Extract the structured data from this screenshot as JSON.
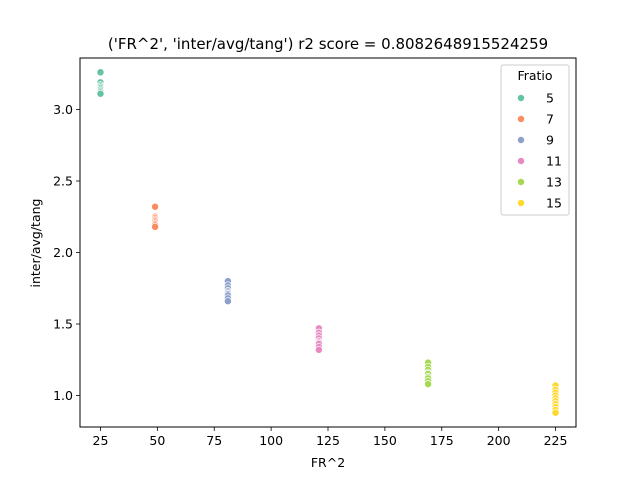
{
  "chart_data": {
    "type": "scatter",
    "title": "('FR^2', 'inter/avg/tang') r2 score = 0.8082648915524259",
    "xlabel": "FR^2",
    "ylabel": "inter/avg/tang",
    "xlim": [
      16,
      234
    ],
    "ylim": [
      0.78,
      3.36
    ],
    "xticks": [
      25,
      50,
      75,
      100,
      125,
      150,
      175,
      200,
      225
    ],
    "yticks": [
      1.0,
      1.5,
      2.0,
      2.5,
      3.0
    ],
    "xtick_labels": [
      "25",
      "50",
      "75",
      "100",
      "125",
      "150",
      "175",
      "200",
      "225"
    ],
    "ytick_labels": [
      "1.0",
      "1.5",
      "2.0",
      "2.5",
      "3.0"
    ],
    "grid": false,
    "legend": {
      "title": "Fratio",
      "placement": "upper right"
    },
    "series": [
      {
        "name": "5",
        "color": "#66c2a5",
        "x": 25,
        "y": [
          3.26,
          3.19,
          3.17,
          3.16,
          3.15,
          3.14,
          3.13,
          3.12,
          3.11
        ]
      },
      {
        "name": "7",
        "color": "#fc8d62",
        "x": 49,
        "y": [
          2.32,
          2.25,
          2.24,
          2.23,
          2.22,
          2.21,
          2.2,
          2.19,
          2.18
        ]
      },
      {
        "name": "9",
        "color": "#8da0cb",
        "x": 81,
        "y": [
          1.8,
          1.77,
          1.75,
          1.73,
          1.72,
          1.71,
          1.7,
          1.68,
          1.66
        ]
      },
      {
        "name": "11",
        "color": "#e78ac3",
        "x": 121,
        "y": [
          1.47,
          1.44,
          1.42,
          1.4,
          1.38,
          1.37,
          1.36,
          1.34,
          1.32
        ]
      },
      {
        "name": "13",
        "color": "#a6d854",
        "x": 169,
        "y": [
          1.23,
          1.2,
          1.18,
          1.16,
          1.15,
          1.13,
          1.12,
          1.1,
          1.08
        ]
      },
      {
        "name": "15",
        "color": "#ffd92f",
        "x": 225,
        "y": [
          1.07,
          1.04,
          1.02,
          1.0,
          0.98,
          0.96,
          0.94,
          0.92,
          0.9,
          0.88
        ]
      }
    ]
  }
}
